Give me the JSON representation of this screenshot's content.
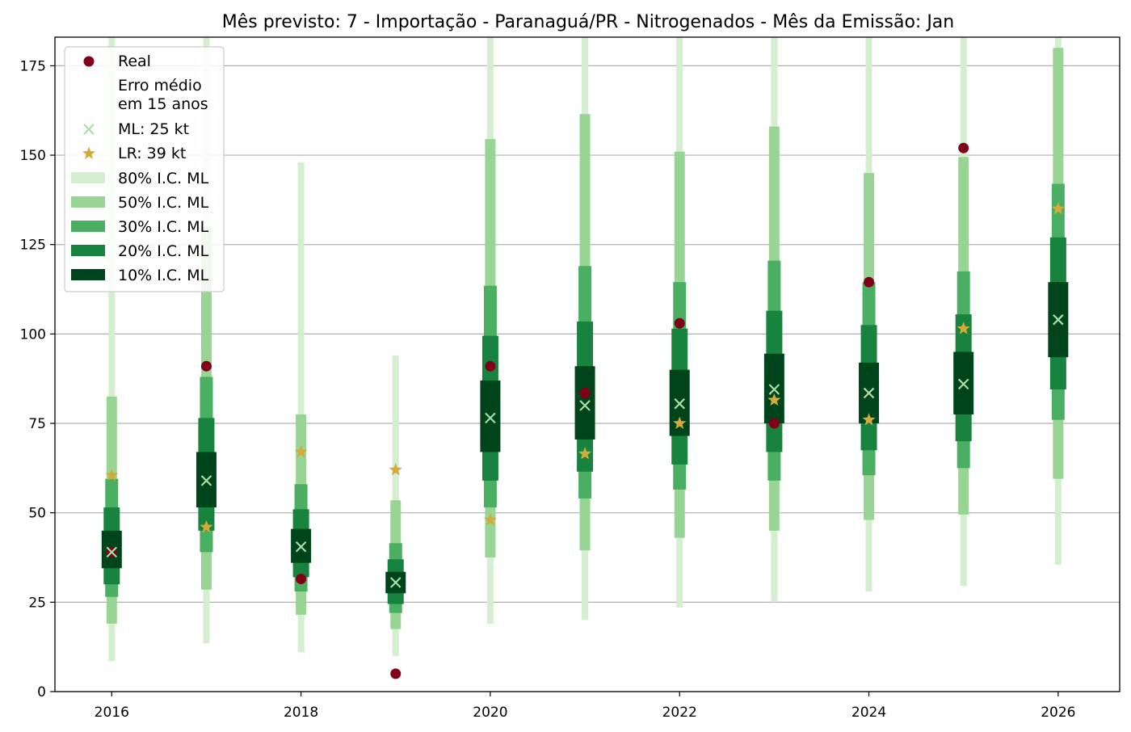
{
  "chart_data": {
    "type": "interval",
    "title": "Mês previsto: 7 - Importação - Paranaguá/PR - Nitrogenados - Mês da Emissão: Jan",
    "xlabel": "",
    "ylabel": "",
    "xlim": [
      2015.4,
      2026.65
    ],
    "ylim": [
      0,
      183
    ],
    "x_ticks": [
      "2016",
      "2018",
      "2020",
      "2022",
      "2024",
      "2026"
    ],
    "y_ticks": [
      "0",
      "25",
      "50",
      "75",
      "100",
      "125",
      "150",
      "175"
    ],
    "grid": "horizontal",
    "legend_position": "top-left",
    "colors": {
      "real": "#7f0018",
      "ml": "#a8dda6",
      "lr": "#d4aa3a",
      "ci80": "#d3efcf",
      "ci50": "#98d594",
      "ci30": "#4aaf62",
      "ci20": "#18833f",
      "ci10": "#00441b"
    },
    "legend": {
      "real": "Real",
      "error_header": "Erro médio\nem 15 anos",
      "ml": "ML: 25 kt",
      "lr": "LR: 39 kt",
      "ci80": "80% I.C. ML",
      "ci50": "50% I.C. ML",
      "ci30": "30% I.C. ML",
      "ci20": "20% I.C. ML",
      "ci10": "10% I.C. ML"
    },
    "years": [
      2016,
      2017,
      2018,
      2019,
      2020,
      2021,
      2022,
      2023,
      2024,
      2025,
      2026
    ],
    "real": [
      39,
      91,
      31.5,
      5,
      91,
      83.5,
      103,
      75,
      114.5,
      152,
      null
    ],
    "ml": [
      39,
      59,
      40.5,
      30.5,
      76.5,
      80,
      80.5,
      84.5,
      83.5,
      86,
      104
    ],
    "lr": [
      60.5,
      46,
      67,
      62,
      48,
      66.5,
      75,
      81.5,
      76,
      101.5,
      135
    ],
    "ci80": [
      [
        8.5,
        190
      ],
      [
        13.5,
        190
      ],
      [
        11,
        148
      ],
      [
        10,
        94
      ],
      [
        19,
        190
      ],
      [
        20,
        190
      ],
      [
        23.5,
        190
      ],
      [
        25,
        190
      ],
      [
        28,
        190
      ],
      [
        29.5,
        190
      ],
      [
        35.5,
        190
      ]
    ],
    "ci50": [
      [
        19,
        82.5
      ],
      [
        28.5,
        130
      ],
      [
        21.5,
        77.5
      ],
      [
        17.5,
        53.5
      ],
      [
        37.5,
        154.5
      ],
      [
        39.5,
        161.5
      ],
      [
        43,
        151
      ],
      [
        45,
        158
      ],
      [
        48,
        145
      ],
      [
        49.5,
        149.5
      ],
      [
        59.5,
        180
      ]
    ],
    "ci30": [
      [
        26.5,
        59.5
      ],
      [
        39,
        88
      ],
      [
        28,
        58
      ],
      [
        22,
        41.5
      ],
      [
        51.5,
        113.5
      ],
      [
        54,
        119
      ],
      [
        56.5,
        114.5
      ],
      [
        59,
        120.5
      ],
      [
        60.5,
        114.5
      ],
      [
        62.5,
        117.5
      ],
      [
        76,
        142
      ]
    ],
    "ci20": [
      [
        30,
        51.5
      ],
      [
        45,
        76.5
      ],
      [
        32,
        51
      ],
      [
        24.5,
        37
      ],
      [
        59,
        99.5
      ],
      [
        61.5,
        103.5
      ],
      [
        63.5,
        101.5
      ],
      [
        67,
        106.5
      ],
      [
        67.5,
        102.5
      ],
      [
        70,
        105.5
      ],
      [
        84.5,
        127
      ]
    ],
    "ci10": [
      [
        34.5,
        45
      ],
      [
        51.5,
        67
      ],
      [
        36,
        45.5
      ],
      [
        27.5,
        33.5
      ],
      [
        67,
        87
      ],
      [
        70.5,
        91
      ],
      [
        71.5,
        90
      ],
      [
        75,
        94.5
      ],
      [
        75,
        92
      ],
      [
        77.5,
        95
      ],
      [
        93.5,
        114.5
      ]
    ]
  }
}
